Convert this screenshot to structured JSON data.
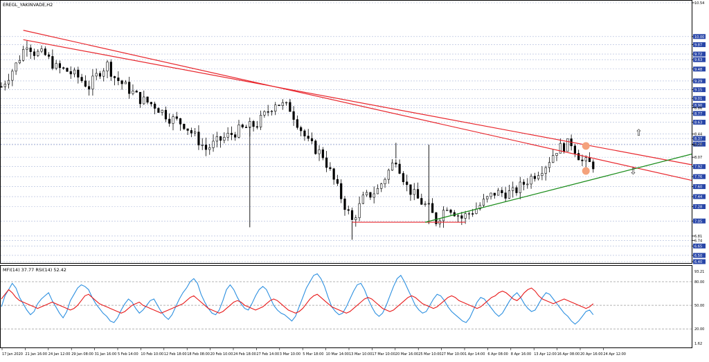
{
  "symbol_label": "EREGL_YAKINVADE,H2",
  "indicator_label": "MFI(14) 37.77 RSI(14) 52.42",
  "colors": {
    "background": "#ffffff",
    "candle": "#000000",
    "grid": "#a8b4d8",
    "trend_red": "#e8262c",
    "trend_green": "#1a8c1a",
    "marker": "#f4a27c",
    "mfi_line": "#2b8fe0",
    "rsi_line": "#e81919",
    "highlight_label": "#2946a8"
  },
  "arrows": {
    "up": "⇧",
    "down": "⇩"
  },
  "price_axis": {
    "labels": [
      "10.54",
      "10.00",
      "9.87",
      "9.72",
      "9.63",
      "9.48",
      "9.29",
      "9.15",
      "9.01",
      "8.90",
      "8.86",
      "8.77",
      "8.63",
      "8.44",
      "8.37",
      "8.28",
      "8.27",
      "8.07",
      "7.92",
      "7.76",
      "7.60",
      "7.44",
      "7.28",
      "7.05",
      "6.81",
      "6.74",
      "6.65",
      "6.50",
      "6.40"
    ],
    "highlighted": [
      "10.00",
      "9.87",
      "9.72",
      "9.63",
      "9.48",
      "9.29",
      "9.15",
      "9.01",
      "8.90",
      "8.77",
      "8.63",
      "8.37",
      "8.28",
      "7.92",
      "7.76",
      "7.60",
      "7.44",
      "7.28",
      "7.05",
      "6.65",
      "6.50",
      "6.40"
    ]
  },
  "indicator_axis": {
    "labels": [
      "93.21",
      "80.00",
      "50.00",
      "20.00",
      "1.62"
    ]
  },
  "time_axis": {
    "labels": [
      "17 Jan 2020",
      "21 Jan 16:00",
      "24 Jan 12:00",
      "29 Jan 08:00",
      "31 Jan 16:00",
      "5 Feb 14:00",
      "10 Feb 10:00",
      "12 Feb 18:00",
      "18 Feb 08:00",
      "20 Feb 10:00",
      "24 Feb 18:00",
      "27 Feb 14:00",
      "3 Mar 10:00",
      "5 Mar 18:00",
      "10 Mar 14:00",
      "13 Mar 10:00",
      "17 Mar 10:00",
      "20 Mar 16:00",
      "25 Mar 10:00",
      "27 Mar 10:00",
      "1 Apr 14:00",
      "6 Apr 08:00",
      "8 Apr 16:00",
      "13 Apr 12:00",
      "16 Apr 08:00",
      "20 Apr 16:00",
      "24 Apr 12:00"
    ]
  },
  "chart_data": {
    "type": "candlestick",
    "title": "EREGL_YAKINVADE,H2",
    "price_range": [
      6.4,
      10.54
    ],
    "close_path": [
      {
        "x": 0,
        "y": 9.2
      },
      {
        "x": 4,
        "y": 9.55
      },
      {
        "x": 7,
        "y": 9.9
      },
      {
        "x": 9,
        "y": 9.75
      },
      {
        "x": 12,
        "y": 9.7
      },
      {
        "x": 15,
        "y": 9.5
      },
      {
        "x": 18,
        "y": 9.45
      },
      {
        "x": 21,
        "y": 9.35
      },
      {
        "x": 24,
        "y": 9.2
      },
      {
        "x": 27,
        "y": 9.45
      },
      {
        "x": 29,
        "y": 9.55
      },
      {
        "x": 31,
        "y": 9.35
      },
      {
        "x": 34,
        "y": 9.2
      },
      {
        "x": 38,
        "y": 9.0
      },
      {
        "x": 42,
        "y": 8.9
      },
      {
        "x": 46,
        "y": 8.7
      },
      {
        "x": 50,
        "y": 8.6
      },
      {
        "x": 53,
        "y": 8.4
      },
      {
        "x": 56,
        "y": 8.2
      },
      {
        "x": 60,
        "y": 8.35
      },
      {
        "x": 65,
        "y": 8.5
      },
      {
        "x": 70,
        "y": 8.6
      },
      {
        "x": 75,
        "y": 8.95
      },
      {
        "x": 79,
        "y": 8.85
      },
      {
        "x": 84,
        "y": 8.3
      },
      {
        "x": 88,
        "y": 8.1
      },
      {
        "x": 91,
        "y": 7.7
      },
      {
        "x": 94,
        "y": 7.3
      },
      {
        "x": 96,
        "y": 7.05
      },
      {
        "x": 99,
        "y": 7.4
      },
      {
        "x": 103,
        "y": 7.55
      },
      {
        "x": 106,
        "y": 7.85
      },
      {
        "x": 108,
        "y": 8.05
      },
      {
        "x": 111,
        "y": 7.6
      },
      {
        "x": 114,
        "y": 7.4
      },
      {
        "x": 117,
        "y": 7.25
      },
      {
        "x": 119,
        "y": 7.05
      },
      {
        "x": 122,
        "y": 7.3
      },
      {
        "x": 126,
        "y": 7.1
      },
      {
        "x": 130,
        "y": 7.25
      },
      {
        "x": 135,
        "y": 7.5
      },
      {
        "x": 140,
        "y": 7.5
      },
      {
        "x": 144,
        "y": 7.7
      },
      {
        "x": 149,
        "y": 7.95
      },
      {
        "x": 152,
        "y": 8.2
      },
      {
        "x": 156,
        "y": 8.3
      },
      {
        "x": 159,
        "y": 8.0
      },
      {
        "x": 162,
        "y": 7.95
      }
    ],
    "spikes": [
      {
        "x": 68,
        "y": 6.95
      },
      {
        "x": 68,
        "y": 8.4
      },
      {
        "x": 79,
        "y": 9.0
      },
      {
        "x": 108,
        "y": 8.3
      },
      {
        "x": 117,
        "y": 8.27
      },
      {
        "x": 117,
        "y": 7.0
      },
      {
        "x": 96,
        "y": 6.75
      }
    ],
    "annotations": {
      "red_channel": [
        {
          "from": [
            6,
            10.1
          ],
          "to": [
            176,
            7.7
          ]
        },
        {
          "from": [
            6,
            9.95
          ],
          "to": [
            176,
            7.95
          ]
        }
      ],
      "red_horizontal": {
        "from": [
          96,
          7.03
        ],
        "to": [
          127,
          7.03
        ]
      },
      "green_trend": {
        "from": [
          116,
          7.03
        ],
        "to": [
          176,
          8.12
        ]
      },
      "markers": [
        {
          "x": 160,
          "y": 8.25
        },
        {
          "x": 160,
          "y": 7.85
        }
      ]
    },
    "indicator": {
      "range": [
        1.62,
        93.21
      ],
      "levels": [
        80,
        50,
        20
      ],
      "series": [
        {
          "name": "MFI",
          "values": [
            48,
            62,
            70,
            78,
            72,
            60,
            52,
            44,
            38,
            42,
            52,
            58,
            62,
            66,
            56,
            48,
            40,
            34,
            42,
            56,
            64,
            72,
            76,
            74,
            70,
            60,
            52,
            46,
            40,
            36,
            30,
            28,
            34,
            44,
            52,
            58,
            54,
            46,
            40,
            44,
            50,
            56,
            58,
            50,
            42,
            36,
            32,
            38,
            48,
            58,
            66,
            72,
            80,
            84,
            78,
            64,
            54,
            46,
            40,
            38,
            44,
            56,
            70,
            76,
            70,
            60,
            52,
            46,
            44,
            52,
            62,
            70,
            74,
            70,
            60,
            50,
            44,
            40,
            38,
            34,
            30,
            36,
            48,
            60,
            72,
            80,
            88,
            90,
            84,
            74,
            60,
            48,
            42,
            38,
            40,
            48,
            58,
            68,
            76,
            78,
            70,
            58,
            48,
            40,
            36,
            40,
            50,
            62,
            74,
            84,
            88,
            80,
            70,
            60,
            50,
            44,
            40,
            42,
            50,
            58,
            64,
            62,
            56,
            48,
            42,
            38,
            34,
            30,
            28,
            34,
            44,
            54,
            60,
            58,
            52,
            46,
            40,
            36,
            40,
            48,
            56,
            62,
            66,
            60,
            52,
            46,
            42,
            44,
            52,
            60,
            66,
            64,
            58,
            52,
            46,
            40,
            36,
            30,
            26,
            30,
            36,
            42,
            44,
            38
          ]
        },
        {
          "name": "RSI",
          "values": [
            58,
            64,
            70,
            66,
            60,
            56,
            54,
            52,
            50,
            48,
            46,
            48,
            50,
            52,
            54,
            52,
            50,
            48,
            46,
            44,
            46,
            50,
            56,
            62,
            64,
            60,
            56,
            52,
            50,
            48,
            46,
            44,
            42,
            40,
            42,
            46,
            50,
            52,
            54,
            50,
            48,
            46,
            44,
            42,
            40,
            42,
            44,
            46,
            48,
            50,
            52,
            56,
            60,
            62,
            58,
            54,
            50,
            46,
            44,
            42,
            40,
            42,
            46,
            50,
            54,
            56,
            54,
            50,
            48,
            46,
            44,
            46,
            48,
            52,
            56,
            58,
            56,
            52,
            48,
            44,
            42,
            40,
            42,
            46,
            52,
            58,
            62,
            64,
            60,
            56,
            52,
            48,
            46,
            44,
            42,
            40,
            42,
            46,
            50,
            54,
            58,
            60,
            58,
            54,
            50,
            46,
            44,
            42,
            44,
            48,
            52,
            56,
            60,
            62,
            60,
            56,
            52,
            50,
            48,
            46,
            48,
            52,
            56,
            60,
            62,
            60,
            56,
            54,
            52,
            50,
            48,
            46,
            48,
            52,
            56,
            60,
            62,
            66,
            68,
            66,
            62,
            58,
            56,
            60,
            66,
            70,
            72,
            68,
            62,
            58,
            56,
            54,
            52,
            54,
            56,
            58,
            56,
            54,
            52,
            50,
            48,
            46,
            48,
            52
          ]
        }
      ]
    }
  }
}
